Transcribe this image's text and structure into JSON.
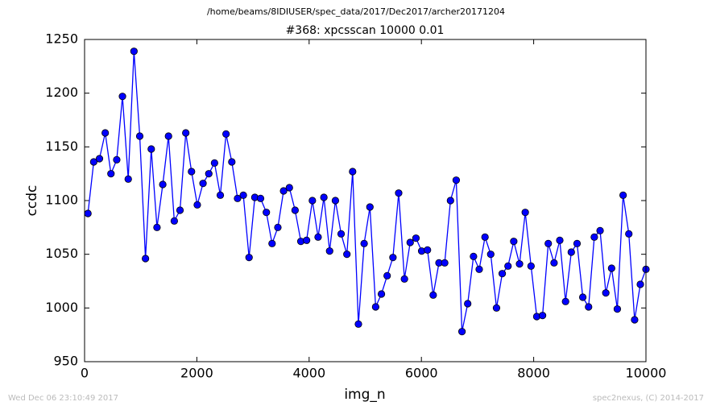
{
  "chart_data": {
    "type": "line",
    "header": "/home/beams/8IDIUSER/spec_data/2017/Dec2017/archer20171204",
    "title": "#368: xpcsscan 10000 0.01",
    "x_label": "img_n",
    "y_label": "ccdc",
    "footer_left": "Wed Dec 06 23:10:49 2017",
    "footer_right": "spec2nexus, (C) 2014-2017",
    "xlim": [
      0,
      10000
    ],
    "ylim": [
      950,
      1250
    ],
    "xticks": [
      0,
      2000,
      4000,
      6000,
      8000,
      10000
    ],
    "yticks": [
      950,
      1000,
      1050,
      1100,
      1150,
      1200,
      1250
    ],
    "grid": false,
    "x": [
      60,
      163,
      265,
      368,
      470,
      573,
      675,
      778,
      880,
      983,
      1085,
      1188,
      1290,
      1393,
      1495,
      1598,
      1700,
      1803,
      1905,
      2008,
      2110,
      2213,
      2315,
      2418,
      2520,
      2623,
      2725,
      2828,
      2930,
      3033,
      3135,
      3238,
      3340,
      3443,
      3545,
      3648,
      3750,
      3853,
      3955,
      4058,
      4160,
      4263,
      4365,
      4468,
      4570,
      4673,
      4775,
      4878,
      4980,
      5083,
      5185,
      5288,
      5390,
      5493,
      5595,
      5698,
      5800,
      5903,
      6005,
      6108,
      6210,
      6313,
      6415,
      6518,
      6620,
      6723,
      6825,
      6928,
      7030,
      7133,
      7235,
      7338,
      7440,
      7543,
      7645,
      7748,
      7850,
      7953,
      8055,
      8158,
      8260,
      8363,
      8465,
      8568,
      8670,
      8773,
      8875,
      8978,
      9080,
      9183,
      9285,
      9388,
      9490,
      9593,
      9695,
      9798,
      9900,
      10000
    ],
    "series": [
      {
        "name": "ccdc",
        "color": "#0000ff",
        "values": [
          1088,
          1136,
          1139,
          1163,
          1125,
          1138,
          1197,
          1120,
          1239,
          1160,
          1046,
          1148,
          1075,
          1115,
          1160,
          1081,
          1091,
          1163,
          1127,
          1096,
          1116,
          1125,
          1135,
          1105,
          1162,
          1136,
          1102,
          1105,
          1047,
          1103,
          1102,
          1089,
          1060,
          1075,
          1109,
          1112,
          1091,
          1062,
          1063,
          1100,
          1066,
          1103,
          1053,
          1100,
          1069,
          1050,
          1127,
          985,
          1060,
          1094,
          1001,
          1013,
          1030,
          1047,
          1107,
          1027,
          1061,
          1065,
          1053,
          1054,
          1012,
          1042,
          1042,
          1100,
          1119,
          978,
          1004,
          1048,
          1036,
          1066,
          1050,
          1000,
          1032,
          1039,
          1062,
          1041,
          1089,
          1039,
          992,
          993,
          1060,
          1042,
          1063,
          1006,
          1052,
          1060,
          1010,
          1001,
          1066,
          1072,
          1014,
          1037,
          999,
          1105,
          1069,
          989,
          1022,
          1036
        ]
      }
    ]
  }
}
